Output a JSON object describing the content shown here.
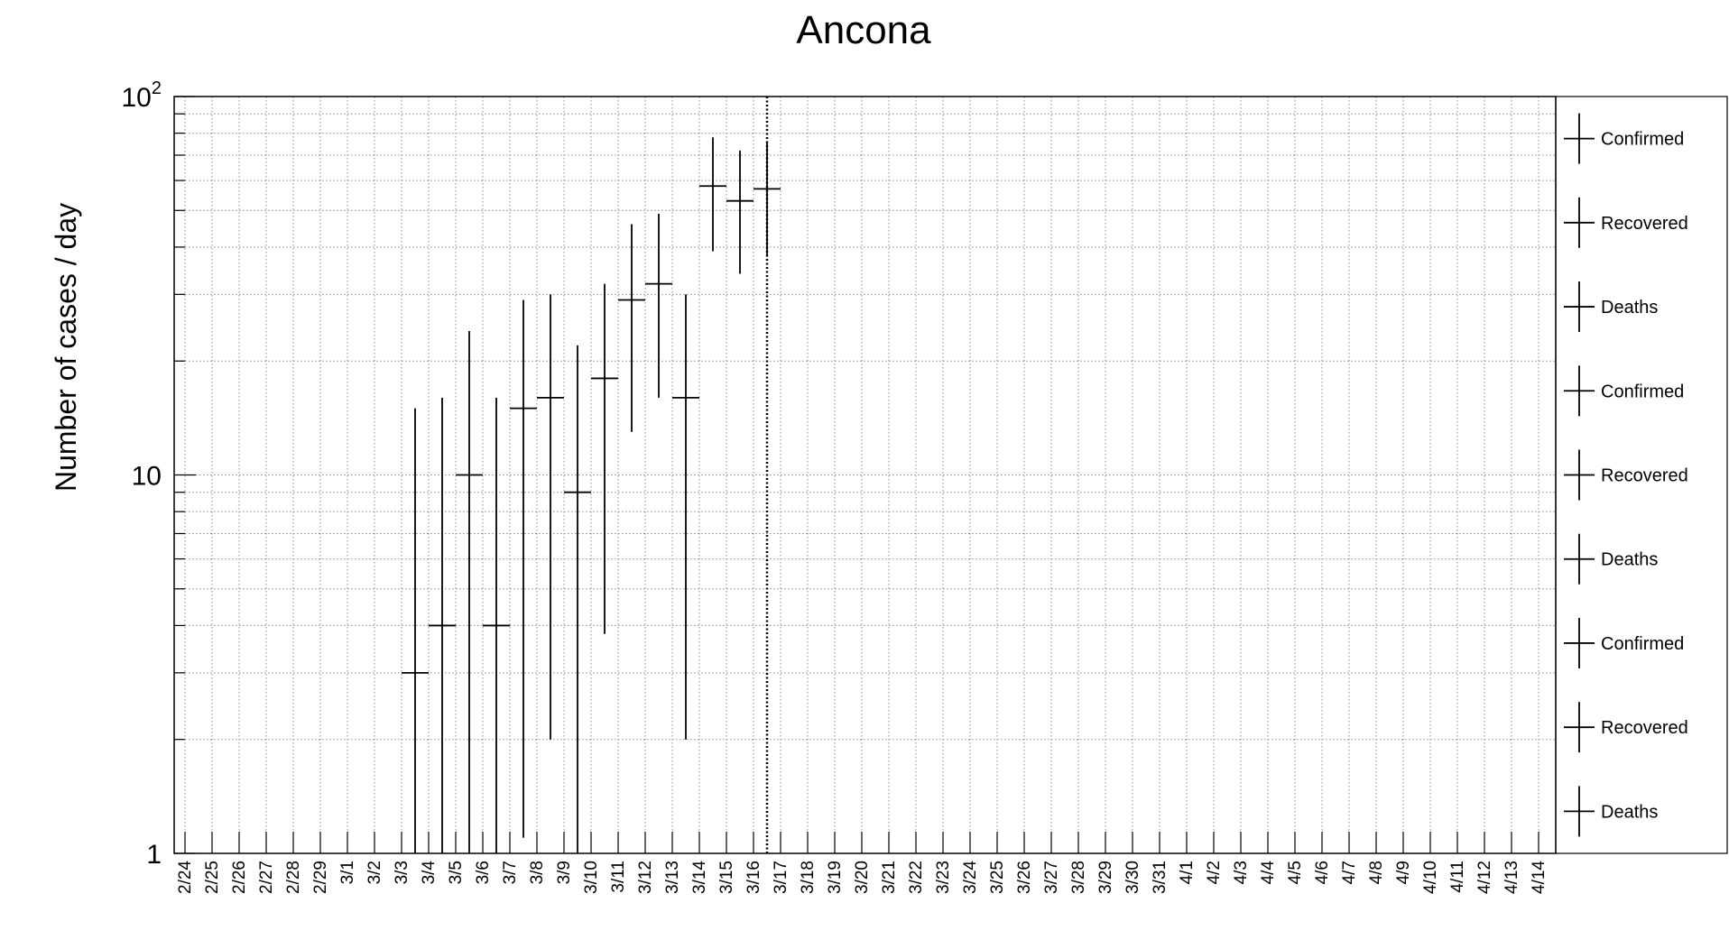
{
  "chart_data": {
    "type": "scatter",
    "title": "Ancona",
    "xlabel": "",
    "ylabel": "Number of cases / day",
    "y_scale": "log",
    "ylim": [
      1,
      100
    ],
    "y_tick_labels": [
      "1",
      "10",
      "10²"
    ],
    "grid": true,
    "legend_position": "right",
    "legend": [
      "Confirmed",
      "Recovered",
      "Deaths",
      "Confirmed",
      "Recovered",
      "Deaths",
      "Confirmed",
      "Recovered",
      "Deaths"
    ],
    "categories": [
      "2/24",
      "2/25",
      "2/26",
      "2/27",
      "2/28",
      "2/29",
      "3/1",
      "3/2",
      "3/3",
      "3/4",
      "3/5",
      "3/6",
      "3/7",
      "3/8",
      "3/9",
      "3/10",
      "3/11",
      "3/12",
      "3/13",
      "3/14",
      "3/15",
      "3/16",
      "3/17",
      "3/18",
      "3/19",
      "3/20",
      "3/21",
      "3/22",
      "3/23",
      "3/24",
      "3/25",
      "3/26",
      "3/27",
      "3/28",
      "3/29",
      "3/30",
      "3/31",
      "4/1",
      "4/2",
      "4/3",
      "4/4",
      "4/5",
      "4/6",
      "4/7",
      "4/8",
      "4/9",
      "4/10",
      "4/11",
      "4/12",
      "4/13",
      "4/14"
    ],
    "vertical_line_after": "3/16",
    "points": [
      {
        "x": "3/3",
        "y": 3,
        "y_low": 1,
        "y_high": 15
      },
      {
        "x": "3/4",
        "y": 4,
        "y_low": 1,
        "y_high": 16
      },
      {
        "x": "3/5",
        "y": 10,
        "y_low": 1,
        "y_high": 24
      },
      {
        "x": "3/6",
        "y": 4,
        "y_low": 1,
        "y_high": 16
      },
      {
        "x": "3/7",
        "y": 15,
        "y_low": 1.1,
        "y_high": 29
      },
      {
        "x": "3/8",
        "y": 16,
        "y_low": 2,
        "y_high": 30
      },
      {
        "x": "3/9",
        "y": 9,
        "y_low": 1,
        "y_high": 22
      },
      {
        "x": "3/10",
        "y": 18,
        "y_low": 3.8,
        "y_high": 32
      },
      {
        "x": "3/11",
        "y": 29,
        "y_low": 13,
        "y_high": 46
      },
      {
        "x": "3/12",
        "y": 32,
        "y_low": 16,
        "y_high": 49
      },
      {
        "x": "3/13",
        "y": 16,
        "y_low": 2,
        "y_high": 30
      },
      {
        "x": "3/14",
        "y": 58,
        "y_low": 39,
        "y_high": 78
      },
      {
        "x": "3/15",
        "y": 53,
        "y_low": 34,
        "y_high": 72
      },
      {
        "x": "3/16",
        "y": 57,
        "y_low": 38,
        "y_high": 76
      }
    ]
  }
}
